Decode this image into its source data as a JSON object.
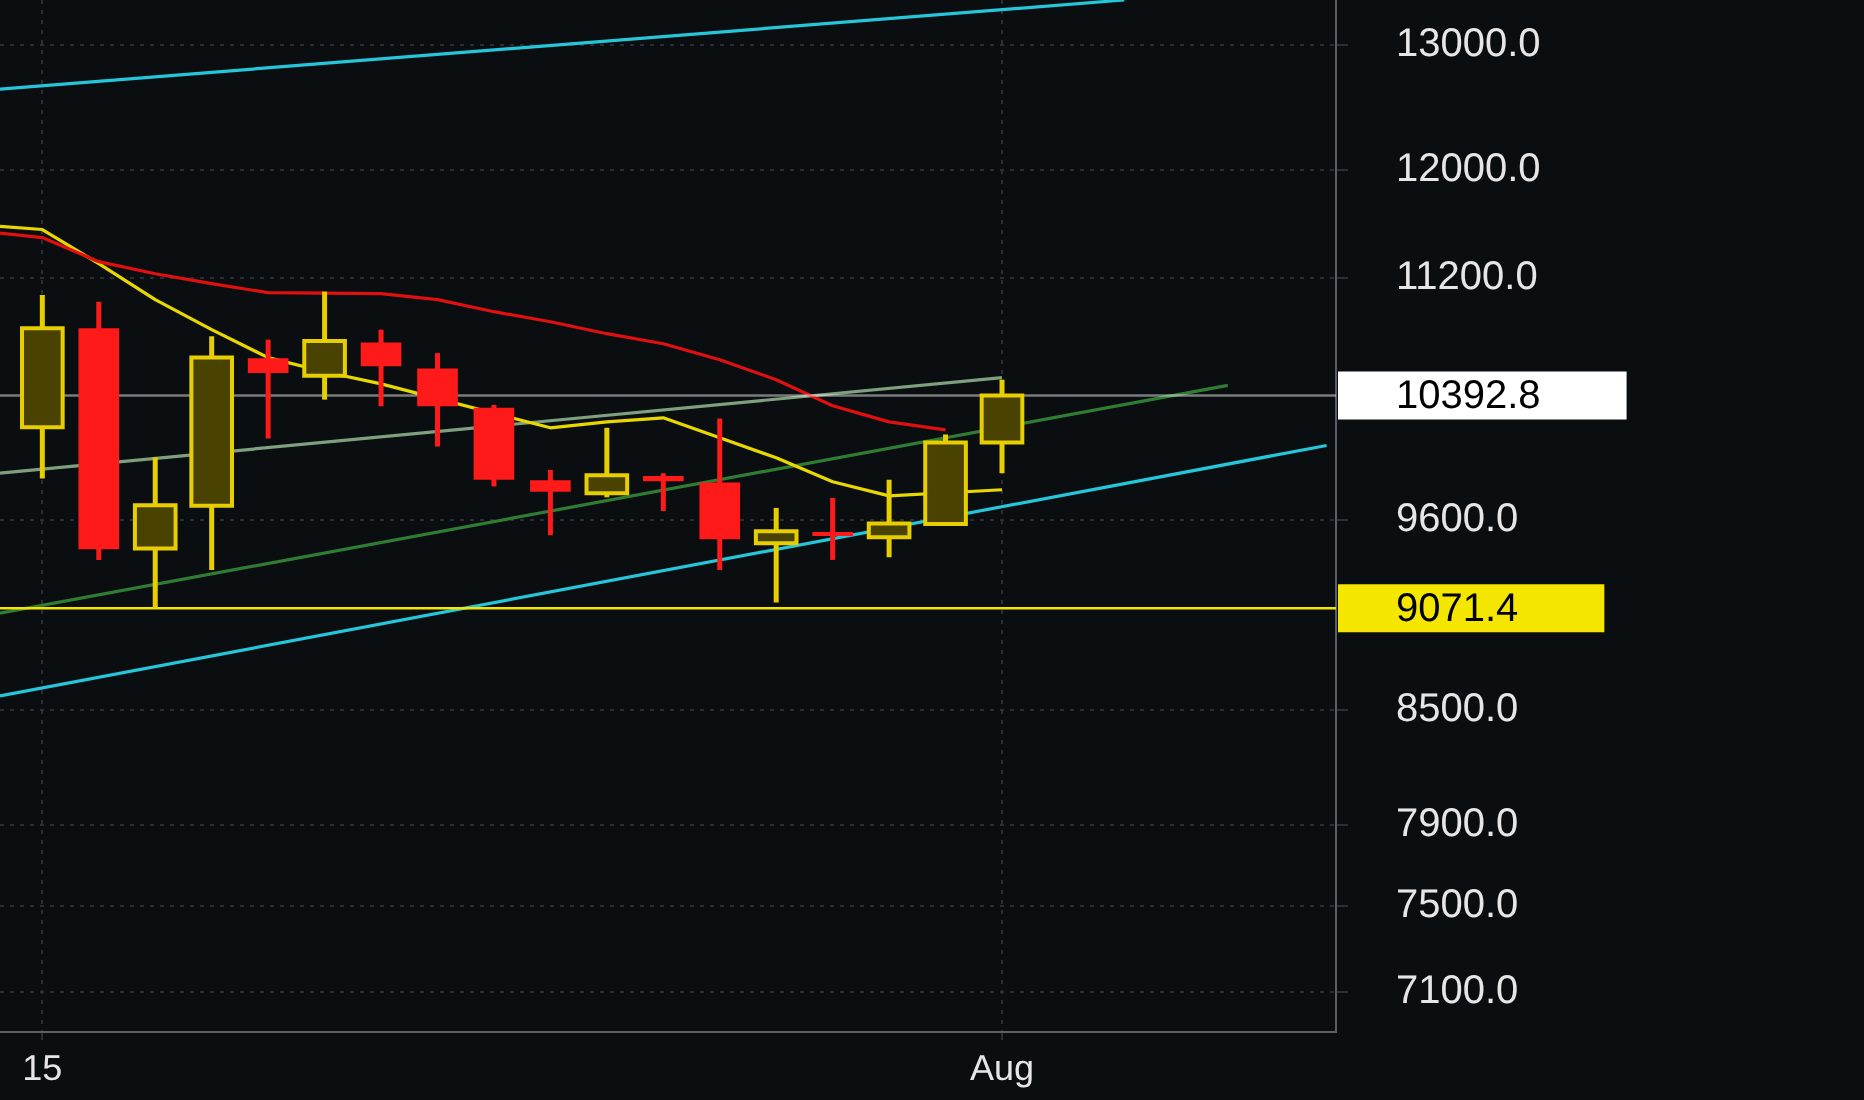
{
  "chart_data": {
    "type": "candlestick",
    "log": "y",
    "grid": true,
    "legend": false,
    "marker": "none",
    "x": [
      "--07-15",
      "--07-16",
      "--07-17",
      "--07-18",
      "--07-19",
      "--07-20",
      "--07-21",
      "--07-22",
      "--07-23",
      "--07-24",
      "--07-25",
      "--07-26",
      "--07-27",
      "--07-28",
      "--07-29",
      "--07-30",
      "--07-31",
      "--08-01"
    ],
    "ohlc": [
      [
        10184,
        11081,
        9856,
        10849
      ],
      [
        10849,
        11034,
        9356,
        9420
      ],
      [
        9425,
        9991,
        9071.4,
        9689
      ],
      [
        9686,
        10793,
        9296,
        10647
      ],
      [
        10643,
        10770,
        10111,
        10543
      ],
      [
        10525,
        11106,
        10365,
        10760
      ],
      [
        10751,
        10839,
        10321,
        10588
      ],
      [
        10574,
        10678,
        10059,
        10321
      ],
      [
        10312,
        10330,
        9806,
        9848
      ],
      [
        9844,
        9910,
        9505,
        9772
      ],
      [
        9763,
        10180,
        9738,
        9876
      ],
      [
        9872,
        9889,
        9653,
        9838
      ],
      [
        9831,
        10241,
        9296,
        9481
      ],
      [
        9456,
        9672,
        9105,
        9529
      ],
      [
        9525,
        9734,
        9356,
        9500
      ],
      [
        9493,
        9848,
        9372,
        9577
      ],
      [
        9573,
        10137,
        9565,
        10085
      ],
      [
        10085,
        10498,
        9889,
        10392.8
      ]
    ],
    "colors": [
      "#4a4200",
      "#ff1a1a",
      "#4a4200",
      "#4a4200",
      "#ff1a1a",
      "#4a4200",
      "#ff1a1a",
      "#ff1a1a",
      "#ff1a1a",
      "#ff1a1a",
      "#4a4200",
      "#ff1a1a",
      "#ff1a1a",
      "#4a4200",
      "#ff1a1a",
      "#4a4200",
      "#4a4200",
      "#4a4200"
    ],
    "series": [
      {
        "type": "line",
        "color": "#e01010",
        "x": [
          "--07-14T06:00",
          "--07-15",
          "--07-16",
          "--07-17",
          "--07-18",
          "--07-19",
          "--07-20",
          "--07-21",
          "--07-22",
          "--07-23",
          "--07-24",
          "--07-25",
          "--07-26",
          "--07-27",
          "--07-28",
          "--07-29",
          "--07-30",
          "--07-31"
        ],
        "values": [
          11529,
          11496,
          11320,
          11233,
          11162,
          11098,
          11095,
          11091,
          11049,
          10964,
          10894,
          10811,
          10742,
          10633,
          10498,
          10325,
          10219,
          10167
        ]
      },
      {
        "type": "line",
        "color": "#e8d800",
        "x": [
          "--07-14T06:00",
          "--07-15",
          "--07-16",
          "--07-17",
          "--07-18",
          "--07-19",
          "--07-20",
          "--07-21",
          "--07-22",
          "--07-23",
          "--07-24",
          "--07-25",
          "--07-26",
          "--07-27",
          "--07-28",
          "--07-29",
          "--07-30",
          "--07-31",
          "--08-01"
        ],
        "values": [
          11579,
          11555,
          11306,
          11049,
          10839,
          10647,
          10551,
          10470,
          null,
          null,
          10180,
          10219,
          10245,
          10115,
          9987,
          9835,
          9747,
          null,
          9785
        ]
      },
      {
        "type": "line",
        "color": "#26c6da",
        "x": [
          "--07-14T06:00",
          "--08-03T04:00"
        ],
        "values": [
          12640,
          13380
        ]
      },
      {
        "type": "line",
        "color": "#26c6da",
        "x": [
          "--07-14T06:00",
          "--08-06T18:00"
        ],
        "values": [
          8578,
          10066
        ]
      },
      {
        "type": "line",
        "color": "#7fa07f",
        "x": [
          "--07-14T06:00",
          "--08-01"
        ],
        "values": [
          9889,
          10512
        ]
      },
      {
        "type": "line",
        "color": "#2e7d32",
        "x": [
          "--07-14T06:00",
          "--08-05"
        ],
        "values": [
          9043,
          10460
        ]
      }
    ],
    "xlim": [
      "--07-14T06:00",
      "--08-06T22:00"
    ],
    "xticks": [
      {
        "value": "--07-15",
        "label": "15"
      },
      {
        "value": "--08-01",
        "label": "Aug"
      }
    ],
    "ylim": [
      6920,
      13380
    ],
    "yticks": [
      {
        "value": 13000,
        "label": "13000.0"
      },
      {
        "value": 12000,
        "label": "12000.0"
      },
      {
        "value": 11200,
        "label": "11200.0"
      },
      {
        "value": 9600,
        "label": "9600.0"
      },
      {
        "value": 8500,
        "label": "8500.0"
      },
      {
        "value": 7900,
        "label": "7900.0"
      },
      {
        "value": 7500,
        "label": "7500.0"
      },
      {
        "value": 7100,
        "label": "7100.0"
      }
    ],
    "ref_lines": [
      {
        "axis": "y",
        "value": 10392.8,
        "label": "10392.8",
        "color": "#ffffff"
      },
      {
        "axis": "y",
        "value": 9071.4,
        "label": "9071.4",
        "color": "#f5e600"
      }
    ]
  }
}
